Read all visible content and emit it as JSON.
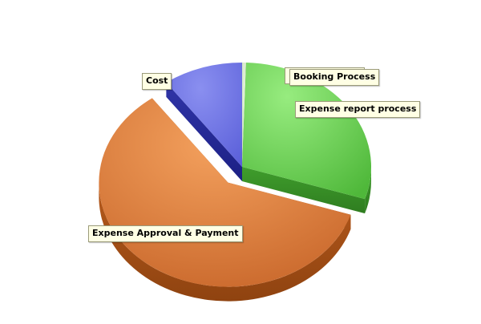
{
  "chart_data": {
    "type": "pie",
    "style": "3d-exploded",
    "slices": [
      {
        "label": "Booking Process",
        "value": 0.5,
        "color": "#d3e6c5"
      },
      {
        "label": "Expense report process",
        "value": 29.5,
        "color": "#5fc24a"
      },
      {
        "label": "Expense Approval & Payment",
        "value": 60,
        "color": "#d87836",
        "exploded": true
      },
      {
        "label": "Cost",
        "value": 10,
        "color": "#6a6ee3"
      }
    ],
    "start_at": "12 o'clock, clockwise",
    "legend": "none (callout labels)"
  }
}
